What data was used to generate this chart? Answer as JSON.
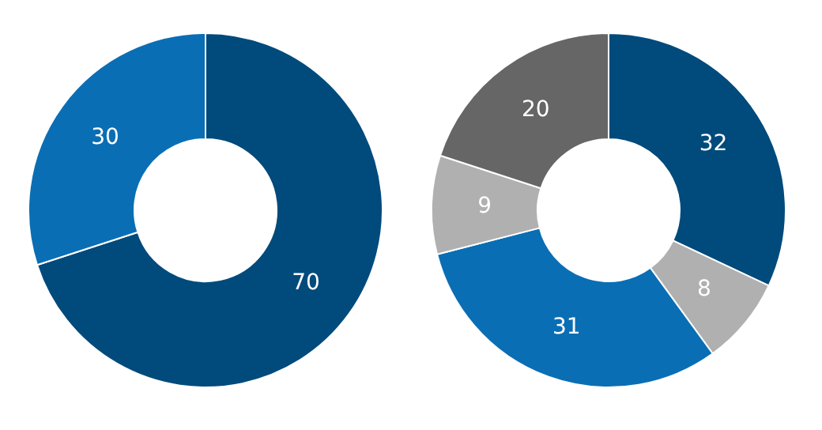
{
  "chart_data": [
    {
      "type": "donut",
      "categories": [
        null,
        null
      ],
      "values": [
        70,
        30
      ],
      "colors": [
        "#004a7c",
        "#0a6eb4"
      ],
      "data_labels": true
    },
    {
      "type": "donut",
      "categories": [
        null,
        null,
        null,
        null,
        null
      ],
      "values": [
        32,
        8,
        31,
        9,
        20
      ],
      "colors": [
        "#004a7c",
        "#b0b0b0",
        "#0a6eb4",
        "#b0b0b0",
        "#666666"
      ],
      "data_labels": true
    }
  ]
}
